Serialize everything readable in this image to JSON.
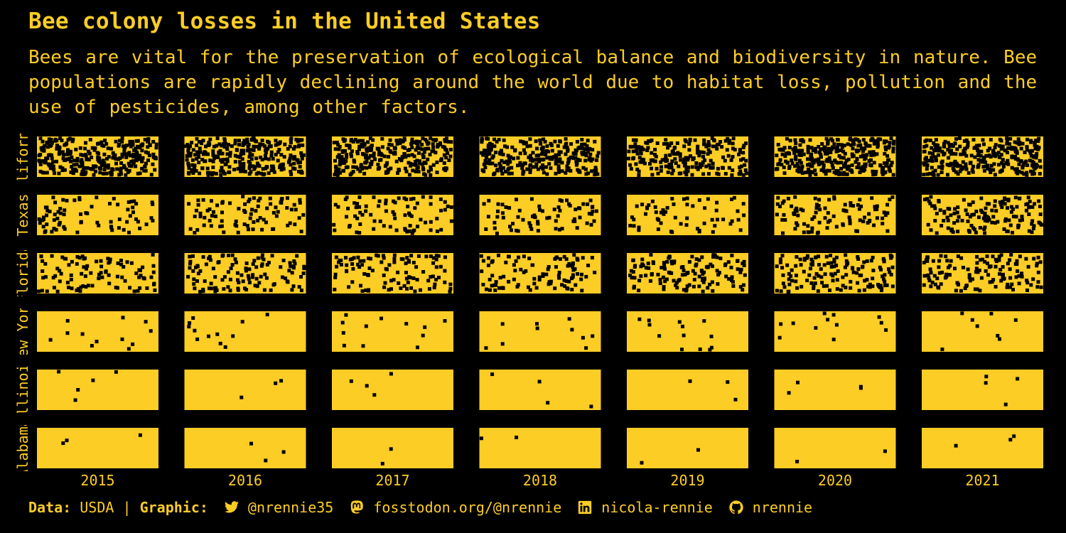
{
  "header": {
    "title": "Bee colony losses in the United States",
    "subtitle": "Bees are vital for the preservation of ecological balance and biodiversity in nature. Bee populations are rapidly declining around the world due to habitat loss, pollution and the use of pesticides, among other factors."
  },
  "colors": {
    "background": "#000000",
    "panel": "#FCCD25",
    "dot": "#000000",
    "text": "#FCCD25"
  },
  "caption": {
    "data_label": "Data:",
    "data_source": "USDA",
    "separator": "|",
    "graphic_label": "Graphic:",
    "twitter": "@nrennie35",
    "mastodon": "fosstodon.org/@nrennie",
    "linkedin": "nicola-rennie",
    "github": "nrennie",
    "icons": [
      "twitter-icon",
      "mastodon-icon",
      "linkedin-icon",
      "github-icon"
    ]
  },
  "chart_data": {
    "type": "heatmap",
    "description_of_encoding": "Each dot within a panel represents lost bee colonies; density reflects losses per state per year",
    "x_categories": [
      "2015",
      "2016",
      "2017",
      "2018",
      "2019",
      "2020",
      "2021"
    ],
    "y_categories": [
      "California",
      "Texas",
      "Florida",
      "New York",
      "Illinois",
      "Alabama"
    ],
    "dot_counts": [
      [
        300,
        290,
        280,
        270,
        220,
        320,
        300
      ],
      [
        75,
        85,
        80,
        75,
        60,
        95,
        140
      ],
      [
        95,
        115,
        105,
        100,
        135,
        140,
        130
      ],
      [
        12,
        12,
        12,
        10,
        13,
        12,
        8
      ],
      [
        5,
        3,
        4,
        4,
        3,
        4,
        4
      ],
      [
        3,
        3,
        2,
        2,
        2,
        2,
        3
      ]
    ]
  }
}
